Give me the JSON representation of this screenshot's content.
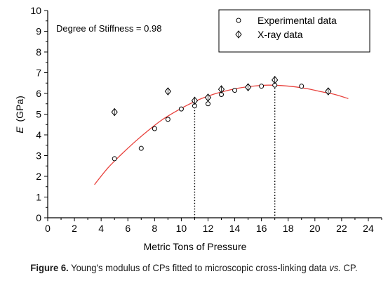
{
  "chart_data": {
    "type": "scatter",
    "xlabel": "Metric Tons of Pressure",
    "ylabel_main": "E",
    "ylabel_unit": "(GPa)",
    "xlim": [
      0,
      25
    ],
    "ylim": [
      0,
      10
    ],
    "xticks": [
      "0",
      "2",
      "4",
      "6",
      "8",
      "10",
      "12",
      "14",
      "16",
      "18",
      "20",
      "22",
      "24"
    ],
    "yticks": [
      "0",
      "1",
      "2",
      "3",
      "4",
      "5",
      "6",
      "7",
      "8",
      "9",
      "10"
    ],
    "annotation": "Degree of Stiffness = 0.98",
    "legend_position": "top-right",
    "series": [
      {
        "name": "Experimental data",
        "marker": "circle",
        "x": [
          5,
          7,
          8,
          9,
          10,
          11,
          12,
          13,
          14,
          15,
          16,
          17,
          19,
          21
        ],
        "y": [
          2.85,
          3.35,
          4.3,
          4.75,
          5.25,
          5.4,
          5.5,
          5.95,
          6.15,
          6.3,
          6.35,
          6.4,
          6.35,
          6.1
        ]
      },
      {
        "name": "X-ray data",
        "marker": "diamond",
        "x": [
          5,
          9,
          11,
          12,
          13,
          15,
          17,
          21
        ],
        "y": [
          5.1,
          6.1,
          5.65,
          5.8,
          6.2,
          6.3,
          6.65,
          6.1
        ]
      }
    ],
    "fit_curve": {
      "color": "#e8413c",
      "x": [
        3.5,
        4.5,
        5.5,
        6.5,
        7.5,
        8.5,
        9.5,
        10.5,
        11.5,
        12.5,
        13.5,
        14.5,
        15.5,
        16.5,
        17.5,
        18.5,
        19.5,
        20.5,
        21.5,
        22.5
      ],
      "y": [
        1.6,
        2.4,
        3.05,
        3.65,
        4.2,
        4.7,
        5.1,
        5.45,
        5.75,
        5.98,
        6.15,
        6.28,
        6.36,
        6.4,
        6.38,
        6.32,
        6.22,
        6.08,
        5.95,
        5.75
      ]
    },
    "reference_lines_x": [
      11,
      17
    ]
  },
  "caption": {
    "label": "Figure 6.",
    "text": " Young's modulus of CPs fitted to microscopic cross-linking data ",
    "vs": "vs.",
    "tail": " CP."
  }
}
